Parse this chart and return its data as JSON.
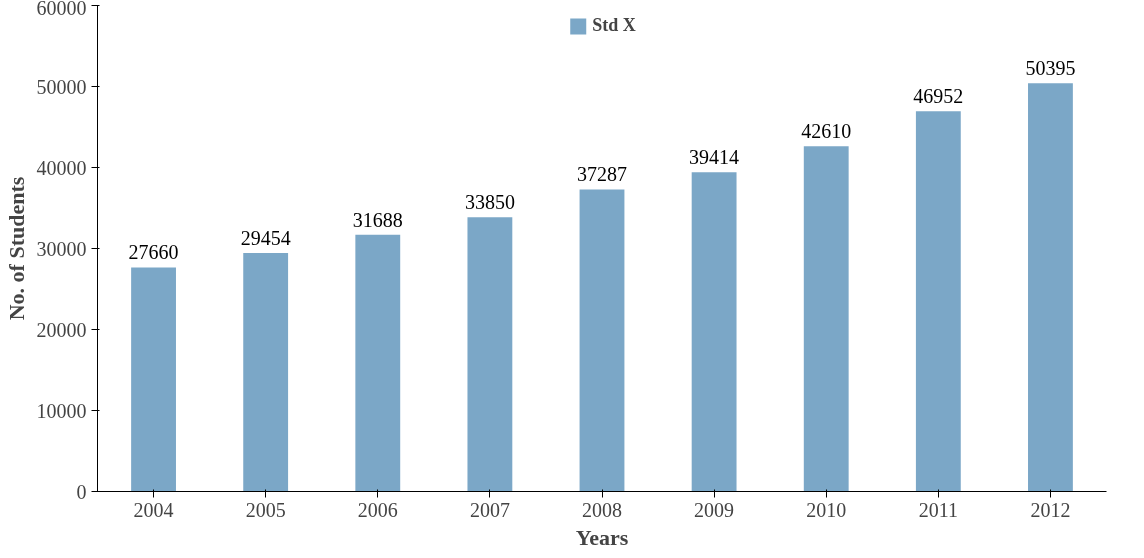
{
  "chart_data": {
    "type": "bar",
    "xlabel": "Years",
    "ylabel": "No. of Students",
    "categories": [
      "2004",
      "2005",
      "2006",
      "2007",
      "2008",
      "2009",
      "2010",
      "2011",
      "2012"
    ],
    "series": [
      {
        "name": "Std X",
        "color": "#7ba7c7",
        "values": [
          27660,
          29454,
          31688,
          33850,
          37287,
          39414,
          42610,
          46952,
          50395
        ]
      }
    ],
    "ylim": [
      0,
      60000
    ],
    "yticks": [
      0,
      10000,
      20000,
      30000,
      40000,
      50000,
      60000
    ],
    "data_labels": true,
    "legend": "top",
    "grid": false
  }
}
